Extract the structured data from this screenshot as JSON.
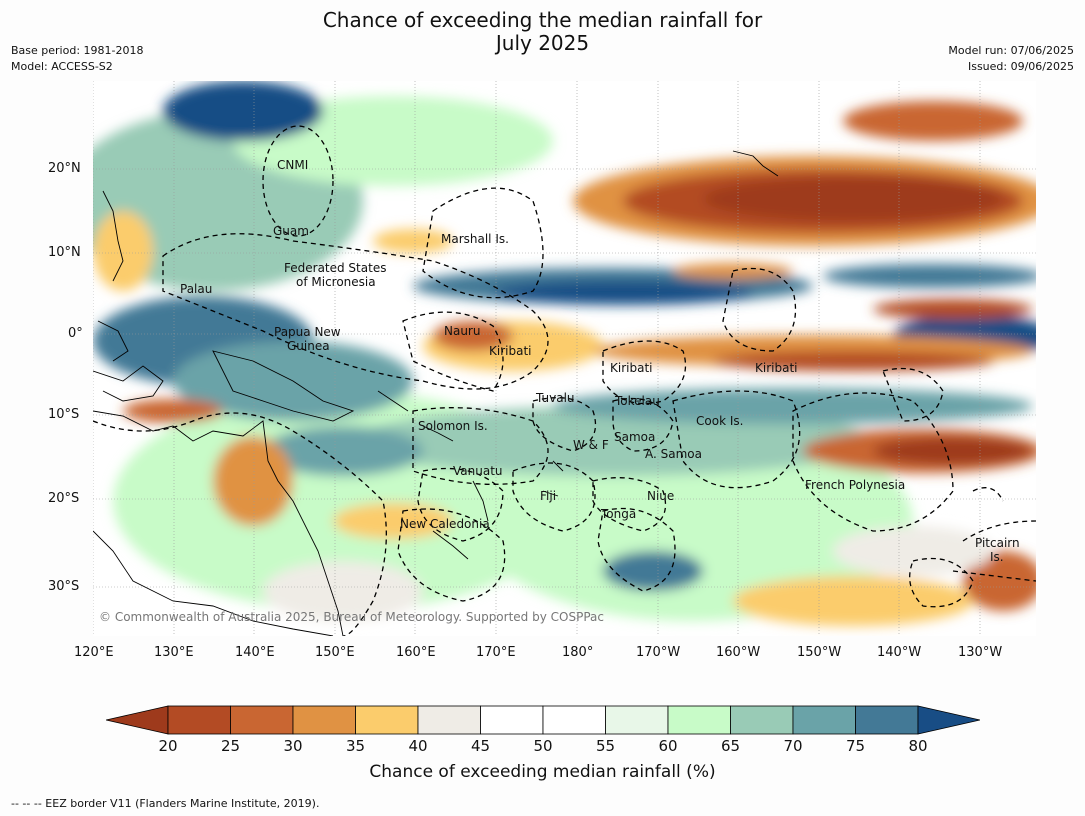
{
  "title": {
    "line1": "Chance of exceeding the median rainfall for",
    "line2": "July 2025"
  },
  "meta": {
    "base_period": "Base period: 1981-2018",
    "model": "Model: ACCESS-S2",
    "model_run": "Model run: 07/06/2025",
    "issued": "Issued: 09/06/2025"
  },
  "axes": {
    "lat_labels": [
      "20°N",
      "10°N",
      "0°",
      "10°S",
      "20°S",
      "30°S"
    ],
    "lon_labels": [
      "120°E",
      "130°E",
      "140°E",
      "150°E",
      "160°E",
      "170°E",
      "180°",
      "170°W",
      "160°W",
      "150°W",
      "140°W",
      "130°W"
    ]
  },
  "places": [
    "CNMI",
    "Guam",
    "Marshall Is.",
    "Federated States",
    "of Micronesia",
    "Palau",
    "Papua New",
    "Guinea",
    "Nauru",
    "Kiribati",
    "Kiribati",
    "Kiribati",
    "Tuvalu",
    "Tokelau",
    "Cook Is.",
    "Solomon Is.",
    "W & F",
    "Samoa",
    "A. Samoa",
    "Vanuatu",
    "Fiji",
    "Niue",
    "Tonga",
    "French Polynesia",
    "New Caledonia",
    "Pitcairn",
    "Is."
  ],
  "copyright": "© Commonwealth of Australia 2025, Bureau of Meteorology. Supported by COSPPac",
  "colorbar": {
    "title": "Chance of exceeding median rainfall (%)",
    "ticks": [
      "20",
      "25",
      "30",
      "35",
      "40",
      "45",
      "50",
      "55",
      "60",
      "65",
      "70",
      "75",
      "80"
    ],
    "colors": [
      "#9e3a1c",
      "#b34b24",
      "#c96632",
      "#e09243",
      "#fbcc6c",
      "#efece6",
      "#ffffff",
      "#ffffff",
      "#e8f7e8",
      "#c8fbc8",
      "#99cbb6",
      "#6aa3a8",
      "#437996",
      "#184d85"
    ]
  },
  "footnote": "--  --  -- EEZ border V11 (Flanders Marine Institute, 2019)."
}
